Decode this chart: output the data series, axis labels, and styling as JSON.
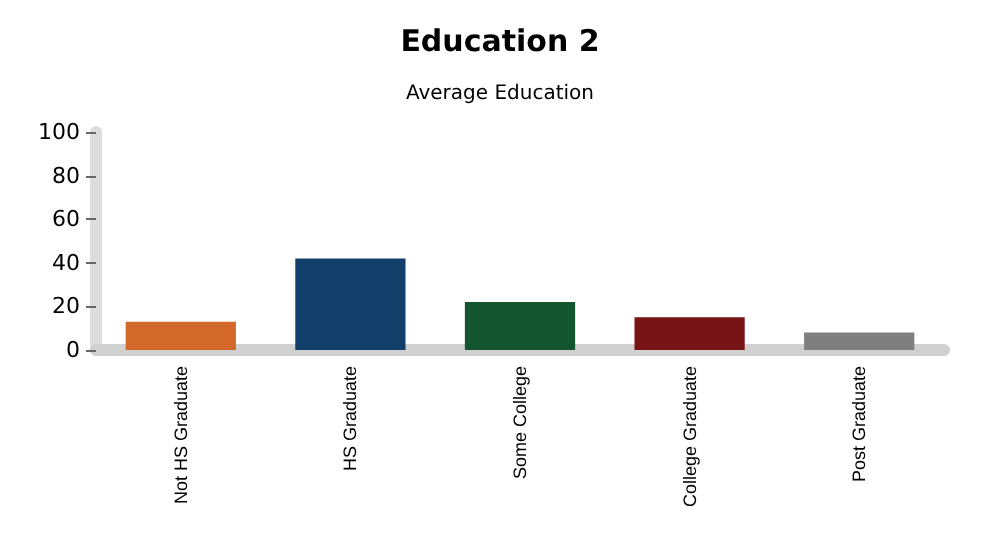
{
  "chart_data": {
    "type": "bar",
    "title": "Education 2",
    "subtitle": "Average Education",
    "categories": [
      "Not HS Graduate",
      "HS Graduate",
      "Some College",
      "College Graduate",
      "Post Graduate"
    ],
    "values": [
      13,
      42,
      22,
      15,
      8
    ],
    "colors": [
      "#d2692a",
      "#123f6a",
      "#13552e",
      "#771416",
      "#7f7f7f"
    ],
    "ylim": [
      0,
      100
    ],
    "yticks": [
      0,
      20,
      40,
      60,
      80,
      100
    ]
  }
}
